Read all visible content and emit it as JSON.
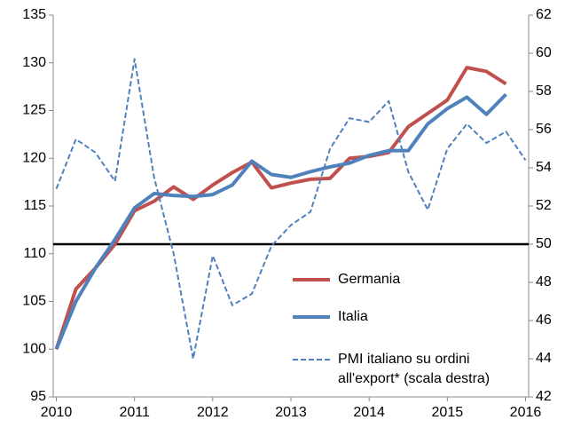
{
  "chart_data": {
    "type": "line",
    "x": [
      2010,
      2010.25,
      2010.5,
      2010.75,
      2011,
      2011.25,
      2011.5,
      2011.75,
      2012,
      2012.25,
      2012.5,
      2012.75,
      2013,
      2013.25,
      2013.5,
      2013.75,
      2014,
      2014.25,
      2014.5,
      2014.75,
      2015,
      2015.25,
      2015.5,
      2015.75,
      2016
    ],
    "xlim": [
      2009.96,
      2016.04
    ],
    "xticks": [
      2010,
      2011,
      2012,
      2013,
      2014,
      2015,
      2016
    ],
    "ylim": [
      95,
      135
    ],
    "yticks": [
      95,
      100,
      105,
      110,
      115,
      120,
      125,
      130,
      135
    ],
    "y2lim": [
      42,
      62
    ],
    "y2ticks": [
      42,
      44,
      46,
      48,
      50,
      52,
      54,
      56,
      58,
      60,
      62
    ],
    "series": [
      {
        "name": "Germania",
        "color": "#c0504d",
        "style": "solid",
        "values": [
          100,
          106.3,
          108.5,
          111,
          114.5,
          115.5,
          117,
          115.7,
          117.2,
          118.5,
          119.6,
          116.9,
          117.4,
          117.8,
          117.9,
          120,
          120.2,
          120.6,
          123.3,
          124.7,
          126.1,
          129.5,
          129.1,
          127.8,
          null
        ]
      },
      {
        "name": "Italia",
        "color": "#4f81bd",
        "style": "solid",
        "values": [
          100,
          105,
          108.5,
          111.5,
          114.8,
          116.3,
          116.1,
          116,
          116.2,
          117.2,
          119.7,
          118.3,
          118,
          118.6,
          119.1,
          119.5,
          120.3,
          120.8,
          120.8,
          123.6,
          125.2,
          126.4,
          124.6,
          126.7,
          null
        ]
      },
      {
        "name": "PMI italiano su ordini all'export* (scala destra)",
        "color": "#4f81bd",
        "style": "dashed",
        "axis": "y2",
        "values": [
          52.9,
          55.5,
          54.8,
          53.3,
          59.7,
          53.5,
          49.5,
          44,
          49.4,
          46.8,
          47.4,
          49.9,
          51,
          51.7,
          55,
          56.6,
          56.4,
          57.5,
          53.8,
          51.8,
          55,
          56.3,
          55.3,
          55.9,
          54.4
        ]
      }
    ],
    "reference_line": {
      "value": 50,
      "axis": "y2",
      "color": "#000000"
    },
    "grid": false,
    "legend": "lower right"
  }
}
